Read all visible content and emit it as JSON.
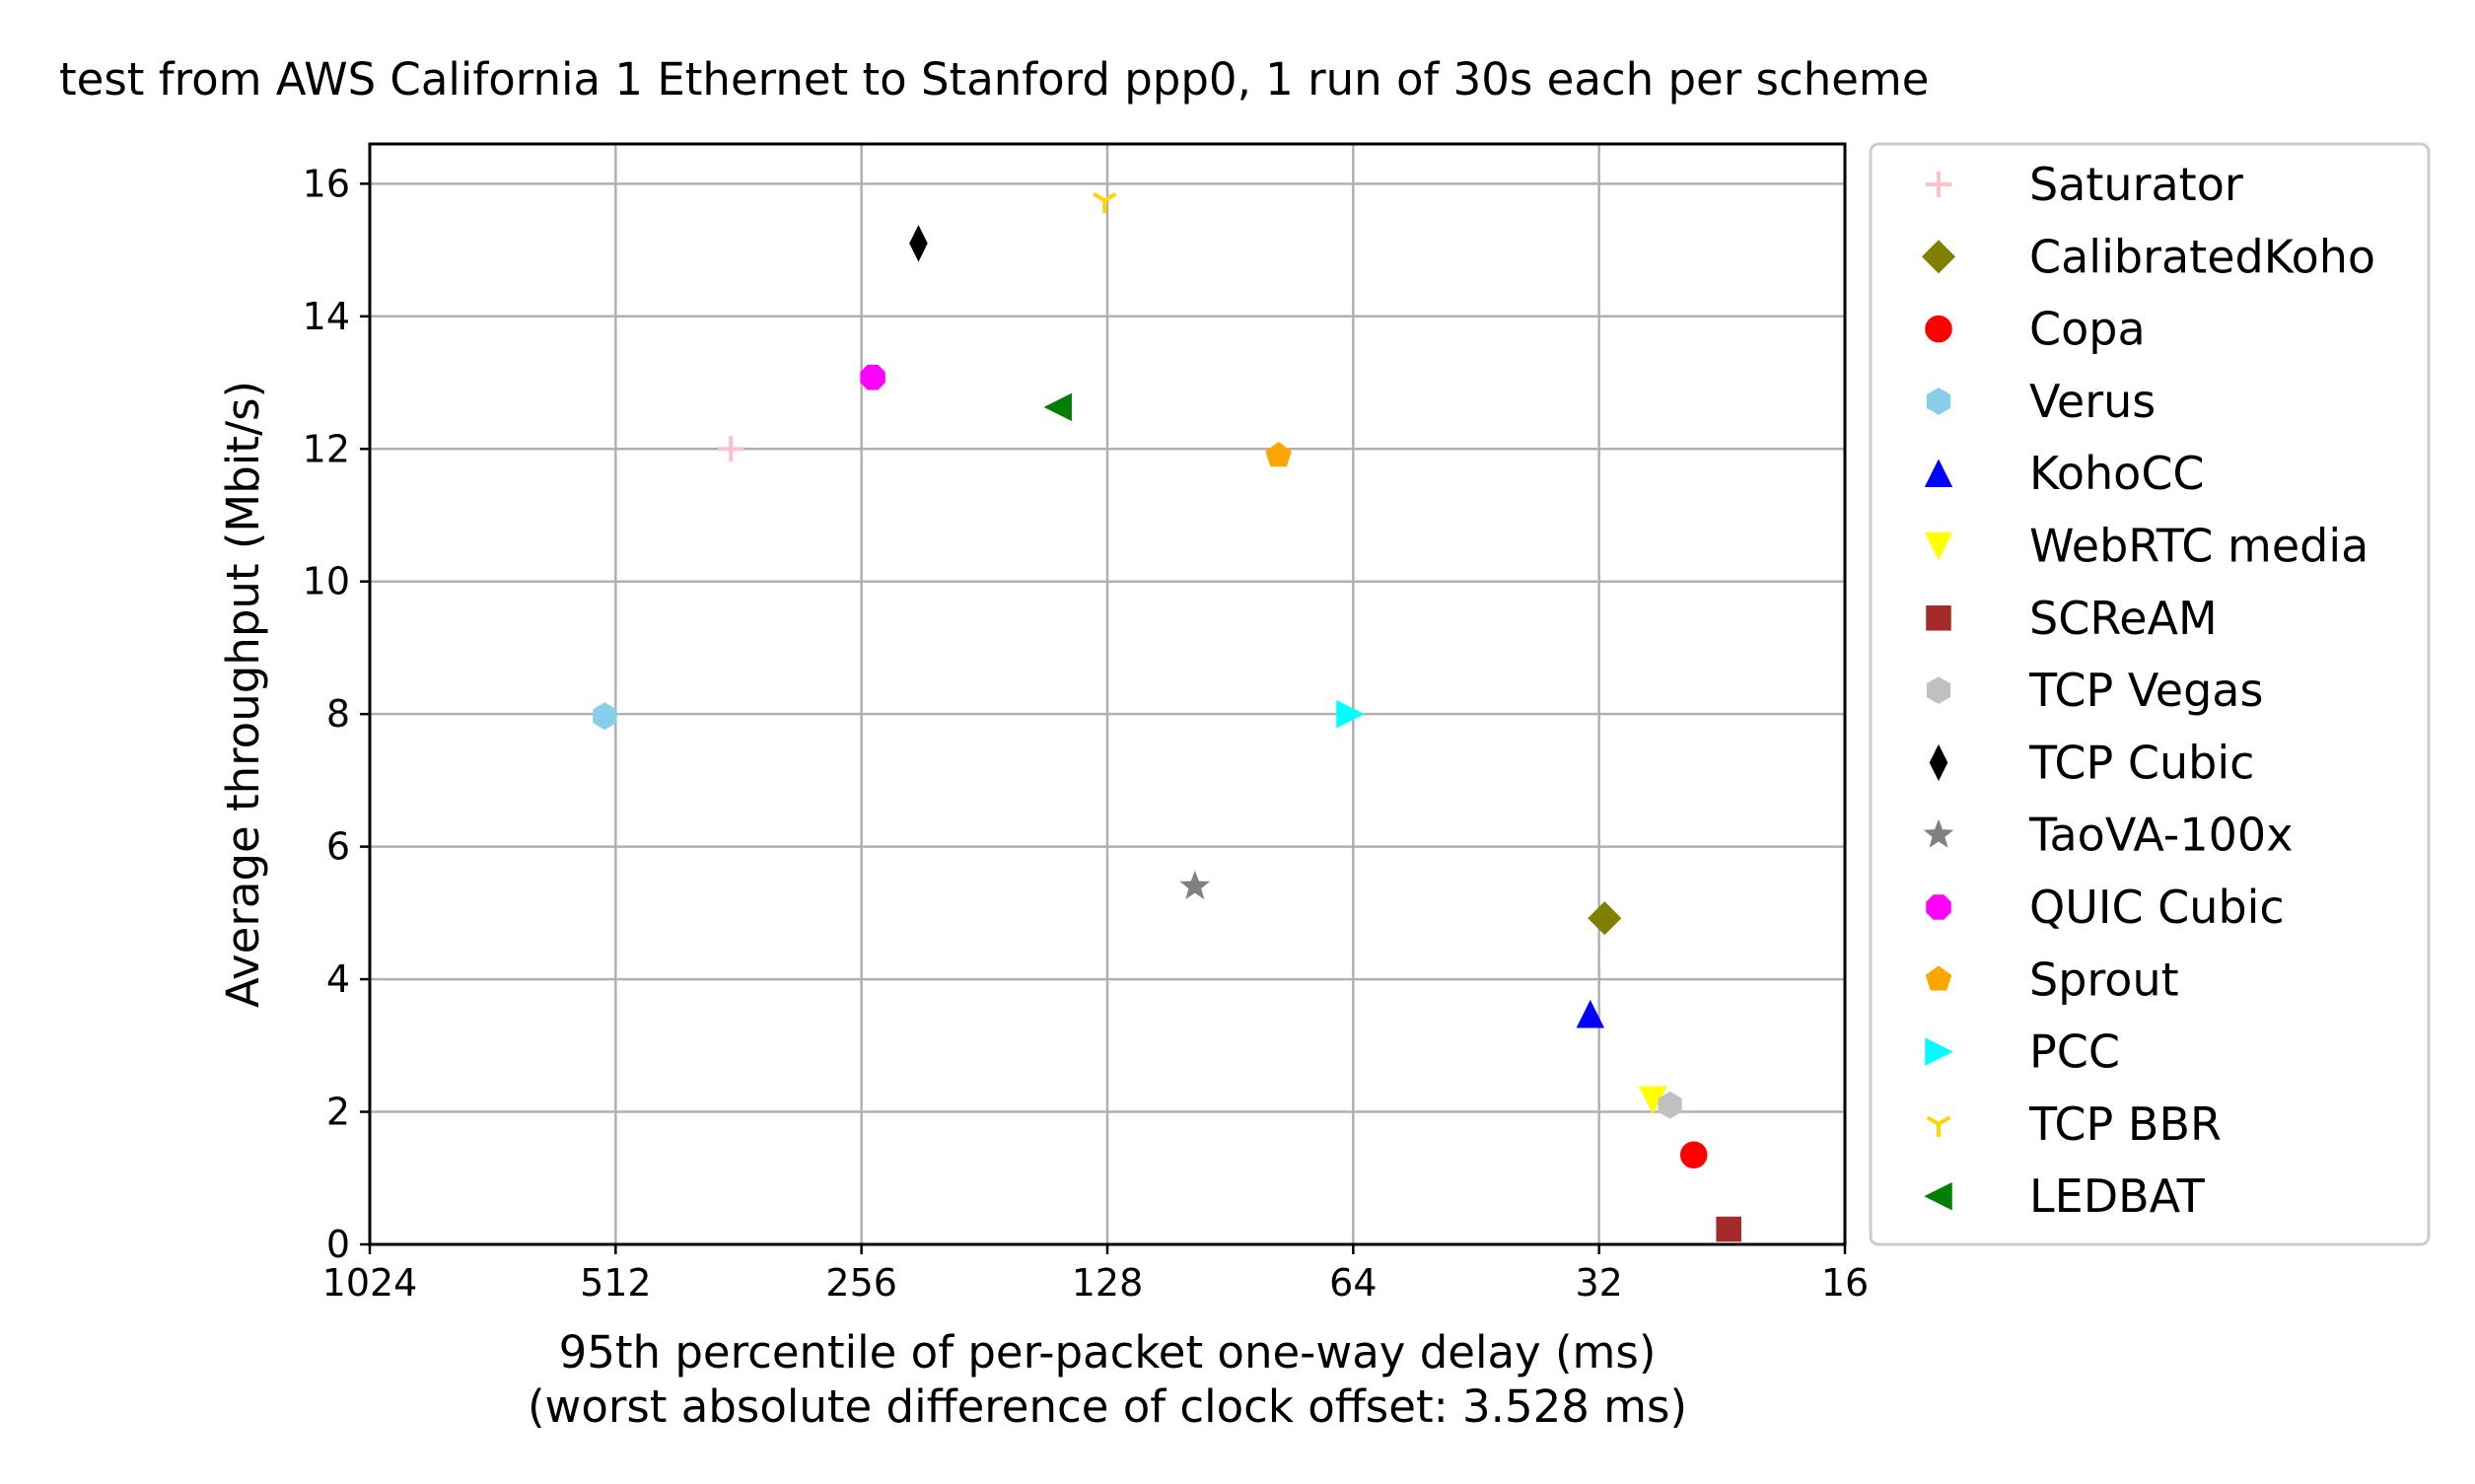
{
  "chart_data": {
    "type": "scatter",
    "title": "test from AWS California 1 Ethernet to Stanford ppp0, 1 run of 30s each per scheme",
    "xlabel": "95th percentile of per-packet one-way delay (ms)",
    "xlabel_sub": "(worst absolute difference of clock offset: 3.528 ms)",
    "ylabel": "Average throughput (Mbit/s)",
    "x_scale": "log2",
    "x_inverted": true,
    "xlim": [
      1024,
      16
    ],
    "ylim": [
      0,
      16.6
    ],
    "xticks": [
      1024,
      512,
      256,
      128,
      64,
      32,
      16
    ],
    "yticks": [
      0,
      2,
      4,
      6,
      8,
      10,
      12,
      14,
      16
    ],
    "grid": true,
    "legend_position": "outside-right",
    "series": [
      {
        "name": "Saturator",
        "x": 370,
        "y": 12.0,
        "marker": "plus",
        "color": "#ffc0cb"
      },
      {
        "name": "CalibratedKoho",
        "x": 31.5,
        "y": 4.92,
        "marker": "diamond",
        "color": "#808000"
      },
      {
        "name": "Copa",
        "x": 24.5,
        "y": 1.35,
        "marker": "circle",
        "color": "#ff0000"
      },
      {
        "name": "Verus",
        "x": 528,
        "y": 7.97,
        "marker": "hexagon",
        "color": "#87ceeb"
      },
      {
        "name": "KohoCC",
        "x": 32.8,
        "y": 3.47,
        "marker": "triangle-up",
        "color": "#0000ff"
      },
      {
        "name": "WebRTC media",
        "x": 27.5,
        "y": 2.18,
        "marker": "triangle-down",
        "color": "#ffff00"
      },
      {
        "name": "SCReAM",
        "x": 22.2,
        "y": 0.23,
        "marker": "square",
        "color": "#a52a2a"
      },
      {
        "name": "TCP Vegas",
        "x": 26.2,
        "y": 2.1,
        "marker": "hexagon",
        "color": "#c0c0c0"
      },
      {
        "name": "TCP Cubic",
        "x": 218,
        "y": 15.1,
        "marker": "thin-diamond",
        "color": "#000000"
      },
      {
        "name": "TaoVA-100x",
        "x": 100,
        "y": 5.4,
        "marker": "star",
        "color": "#808080"
      },
      {
        "name": "QUIC Cubic",
        "x": 248,
        "y": 13.08,
        "marker": "octagon",
        "color": "#ff00ff"
      },
      {
        "name": "Sprout",
        "x": 79,
        "y": 11.9,
        "marker": "pentagon",
        "color": "#ffa500"
      },
      {
        "name": "PCC",
        "x": 64.6,
        "y": 8.0,
        "marker": "triangle-right",
        "color": "#00ffff"
      },
      {
        "name": "TCP BBR",
        "x": 129,
        "y": 15.75,
        "marker": "tri-down",
        "color": "#ffd700"
      },
      {
        "name": "LEDBAT",
        "x": 147,
        "y": 12.63,
        "marker": "triangle-left",
        "color": "#008000"
      }
    ]
  }
}
